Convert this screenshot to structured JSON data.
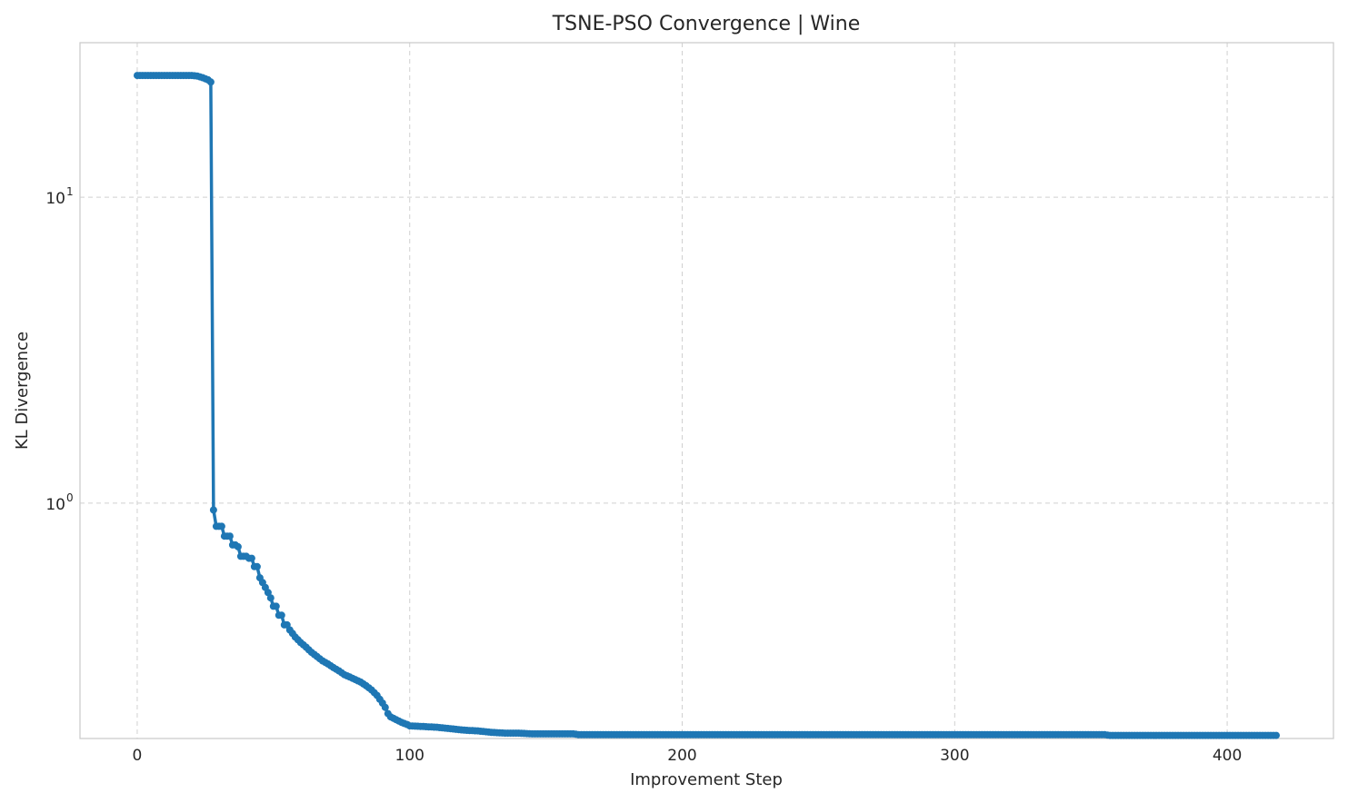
{
  "chart_data": {
    "type": "line",
    "title": "TSNE-PSO Convergence | Wine",
    "xlabel": "Improvement Step",
    "ylabel": "KL Divergence",
    "xlim": [
      -21,
      439
    ],
    "ylim": [
      0.17,
      32
    ],
    "yscale": "log",
    "grid": true,
    "marker": "circle",
    "color": "#1f77b4",
    "x_ticks": [
      {
        "value": 0,
        "label": "0"
      },
      {
        "value": 100,
        "label": "100"
      },
      {
        "value": 200,
        "label": "200"
      },
      {
        "value": 300,
        "label": "300"
      },
      {
        "value": 400,
        "label": "400"
      }
    ],
    "y_ticks": [
      {
        "value": 1,
        "label_base": "10",
        "label_exp": "0"
      },
      {
        "value": 10,
        "label_base": "10",
        "label_exp": "1"
      }
    ],
    "series": [
      {
        "x": [
          0,
          5,
          10,
          15,
          20,
          22,
          24,
          26,
          27,
          28,
          29,
          30,
          31,
          32,
          33,
          34,
          35,
          36,
          37,
          38,
          39,
          40,
          41,
          42,
          43,
          44,
          45,
          46,
          47,
          48,
          49,
          50,
          51,
          52,
          53,
          54,
          55,
          56,
          57,
          58,
          60,
          62,
          64,
          66,
          68,
          70,
          72,
          74,
          76,
          78,
          80,
          82,
          84,
          86,
          88,
          90,
          91,
          92,
          93,
          95,
          97,
          99,
          100,
          105,
          110,
          115,
          120,
          125,
          130,
          135,
          140,
          145,
          150,
          155,
          160,
          162,
          170,
          200,
          250,
          300,
          350,
          355,
          357,
          360,
          380,
          400,
          418
        ],
        "y": [
          25,
          25,
          25,
          25,
          25,
          24.9,
          24.6,
          24.2,
          23.8,
          0.95,
          0.84,
          0.84,
          0.84,
          0.78,
          0.78,
          0.78,
          0.73,
          0.73,
          0.72,
          0.67,
          0.67,
          0.67,
          0.66,
          0.66,
          0.62,
          0.62,
          0.57,
          0.55,
          0.53,
          0.51,
          0.49,
          0.46,
          0.46,
          0.43,
          0.43,
          0.4,
          0.4,
          0.385,
          0.375,
          0.365,
          0.35,
          0.338,
          0.325,
          0.315,
          0.305,
          0.298,
          0.29,
          0.283,
          0.275,
          0.27,
          0.265,
          0.26,
          0.253,
          0.245,
          0.235,
          0.222,
          0.215,
          0.205,
          0.2,
          0.196,
          0.192,
          0.189,
          0.187,
          0.186,
          0.185,
          0.183,
          0.181,
          0.18,
          0.178,
          0.177,
          0.177,
          0.176,
          0.176,
          0.176,
          0.176,
          0.175,
          0.175,
          0.175,
          0.175,
          0.175,
          0.175,
          0.175,
          0.174,
          0.174,
          0.174,
          0.174,
          0.174
        ]
      }
    ]
  }
}
